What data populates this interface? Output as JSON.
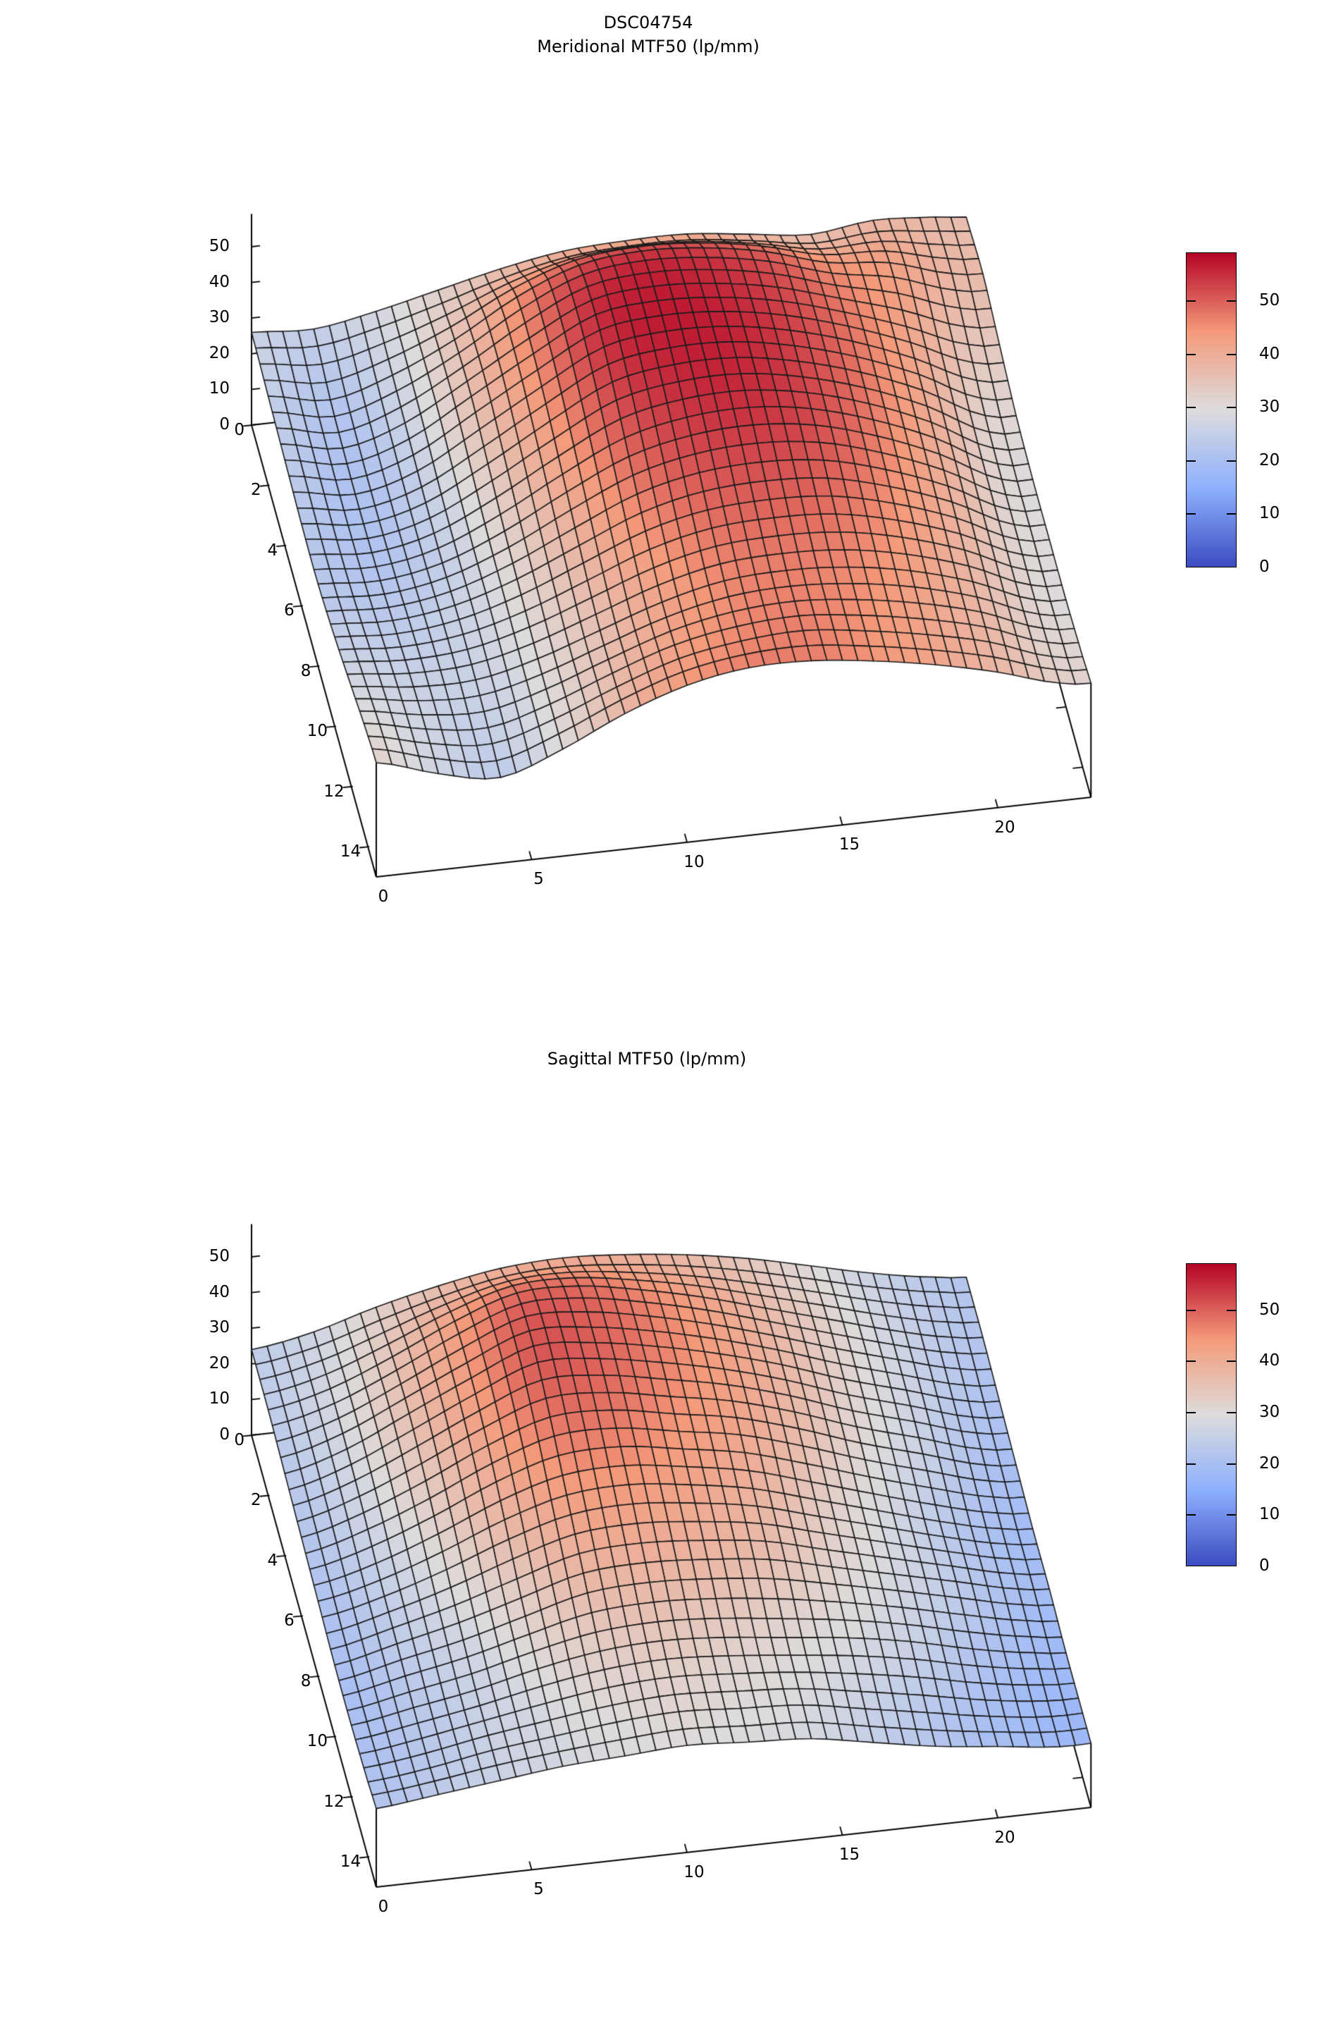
{
  "figure": {
    "background": "#ffffff",
    "text_color": "#000000",
    "mesh_line_color": "#1c1c1c",
    "axis_color": "#000000"
  },
  "chart_data": [
    {
      "type": "surface3d",
      "title_lines": [
        "DSC04754",
        "Meridional MTF50 (lp/mm)"
      ],
      "x_ticks": [
        0,
        5,
        10,
        15,
        20
      ],
      "y_ticks": [
        0,
        2,
        4,
        6,
        8,
        10,
        12,
        14
      ],
      "z_ticks": [
        0,
        10,
        20,
        30,
        40,
        50
      ],
      "colorbar_ticks": [
        0,
        10,
        20,
        30,
        40,
        50
      ],
      "x_range": [
        0,
        23
      ],
      "y_range": [
        0,
        15
      ],
      "z_axis_top": 59.2,
      "color_range": [
        0,
        59.2
      ],
      "palette": {
        "name": "coolwarm",
        "stops": [
          "#3b4cc0",
          "#8db0fe",
          "#dddcdc",
          "#f49a7a",
          "#b40426"
        ]
      },
      "grid": {
        "x_samples": [
          0,
          2,
          4,
          6,
          8,
          10,
          12,
          14,
          16,
          18,
          20,
          22,
          23
        ],
        "y_samples": [
          0,
          2,
          4,
          6,
          8,
          10,
          12,
          14,
          15
        ],
        "z": [
          [
            26,
            25,
            28,
            32,
            36,
            39,
            40,
            40,
            38,
            36,
            38,
            37,
            36
          ],
          [
            25,
            22,
            27,
            35,
            45,
            52,
            54,
            53,
            50,
            45,
            43,
            38,
            37
          ],
          [
            24,
            21,
            26,
            36,
            46,
            55,
            57,
            56,
            53,
            48,
            42,
            35,
            34
          ],
          [
            23,
            21,
            25,
            34,
            44,
            53,
            56,
            56,
            53,
            48,
            41,
            32,
            31
          ],
          [
            23,
            22,
            25,
            32,
            41,
            49,
            53,
            54,
            52,
            47,
            40,
            31,
            30
          ],
          [
            25,
            24,
            26,
            31,
            38,
            45,
            49,
            50,
            49,
            45,
            39,
            31,
            30
          ],
          [
            28,
            26,
            26,
            30,
            36,
            42,
            46,
            47,
            46,
            43,
            38,
            31,
            30
          ],
          [
            31,
            27,
            25,
            30,
            37,
            43,
            46,
            47,
            45,
            42,
            38,
            32,
            31
          ],
          [
            32,
            27,
            24,
            30,
            38,
            44,
            47,
            47,
            45,
            42,
            38,
            33,
            32
          ]
        ]
      }
    },
    {
      "type": "surface3d",
      "title_lines": [
        "Sagittal MTF50 (lp/mm)"
      ],
      "x_ticks": [
        0,
        5,
        10,
        15,
        20
      ],
      "y_ticks": [
        0,
        2,
        4,
        6,
        8,
        10,
        12,
        14
      ],
      "z_ticks": [
        0,
        10,
        20,
        30,
        40,
        50
      ],
      "colorbar_ticks": [
        0,
        10,
        20,
        30,
        40,
        50
      ],
      "x_range": [
        0,
        23
      ],
      "y_range": [
        0,
        15
      ],
      "z_axis_top": 59.2,
      "color_range": [
        0,
        59.2
      ],
      "palette": {
        "name": "coolwarm",
        "stops": [
          "#3b4cc0",
          "#8db0fe",
          "#dddcdc",
          "#f49a7a",
          "#b40426"
        ]
      },
      "grid": {
        "x_samples": [
          0,
          2,
          4,
          6,
          8,
          10,
          12,
          14,
          16,
          18,
          20,
          22,
          23
        ],
        "y_samples": [
          0,
          2,
          4,
          6,
          8,
          10,
          12,
          14,
          15
        ],
        "z": [
          [
            24,
            27,
            32,
            36,
            39,
            40,
            39,
            37,
            34,
            30,
            26,
            23,
            22
          ],
          [
            24,
            28,
            35,
            43,
            49,
            49,
            46,
            42,
            37,
            32,
            27,
            23,
            22
          ],
          [
            23,
            28,
            36,
            44,
            51,
            50,
            47,
            43,
            38,
            32,
            27,
            22,
            21
          ],
          [
            22,
            27,
            34,
            42,
            48,
            48,
            45,
            42,
            37,
            31,
            26,
            21,
            20
          ],
          [
            21,
            25,
            31,
            38,
            43,
            44,
            42,
            39,
            34,
            29,
            24,
            20,
            19
          ],
          [
            20,
            24,
            28,
            33,
            38,
            39,
            38,
            36,
            32,
            28,
            24,
            20,
            19
          ],
          [
            20,
            23,
            26,
            30,
            33,
            34,
            33,
            31,
            29,
            26,
            22,
            19,
            18
          ],
          [
            21,
            23,
            26,
            28,
            30,
            31,
            30,
            29,
            26,
            23,
            20,
            18,
            18
          ],
          [
            22,
            24,
            26,
            28,
            29,
            30,
            29,
            28,
            25,
            22,
            20,
            18,
            18
          ]
        ]
      }
    }
  ]
}
